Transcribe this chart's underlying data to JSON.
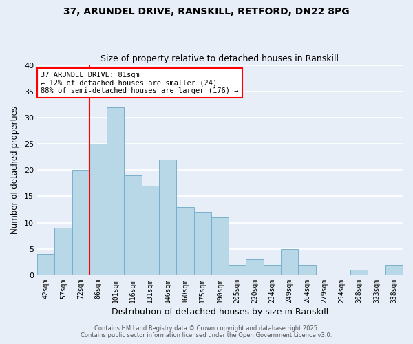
{
  "title_line1": "37, ARUNDEL DRIVE, RANSKILL, RETFORD, DN22 8PG",
  "title_line2": "Size of property relative to detached houses in Ranskill",
  "xlabel": "Distribution of detached houses by size in Ranskill",
  "ylabel": "Number of detached properties",
  "footer_line1": "Contains HM Land Registry data © Crown copyright and database right 2025.",
  "footer_line2": "Contains public sector information licensed under the Open Government Licence v3.0.",
  "annotation_line1": "37 ARUNDEL DRIVE: 81sqm",
  "annotation_line2": "← 12% of detached houses are smaller (24)",
  "annotation_line3": "88% of semi-detached houses are larger (176) →",
  "bar_labels": [
    "42sqm",
    "57sqm",
    "72sqm",
    "86sqm",
    "101sqm",
    "116sqm",
    "131sqm",
    "146sqm",
    "160sqm",
    "175sqm",
    "190sqm",
    "205sqm",
    "220sqm",
    "234sqm",
    "249sqm",
    "264sqm",
    "279sqm",
    "294sqm",
    "308sqm",
    "323sqm",
    "338sqm"
  ],
  "bar_values": [
    4,
    9,
    20,
    25,
    32,
    19,
    17,
    22,
    13,
    12,
    11,
    2,
    3,
    2,
    5,
    2,
    0,
    0,
    1,
    0,
    2
  ],
  "bar_color": "#b8d8e8",
  "bar_edge_color": "#7ab0cc",
  "bar_width": 1.0,
  "ylim": [
    0,
    40
  ],
  "yticks": [
    0,
    5,
    10,
    15,
    20,
    25,
    30,
    35,
    40
  ],
  "redline_x": 2.5,
  "background_color": "#e8eef8",
  "grid_color": "#ffffff",
  "title_fontsize": 10,
  "subtitle_fontsize": 9
}
